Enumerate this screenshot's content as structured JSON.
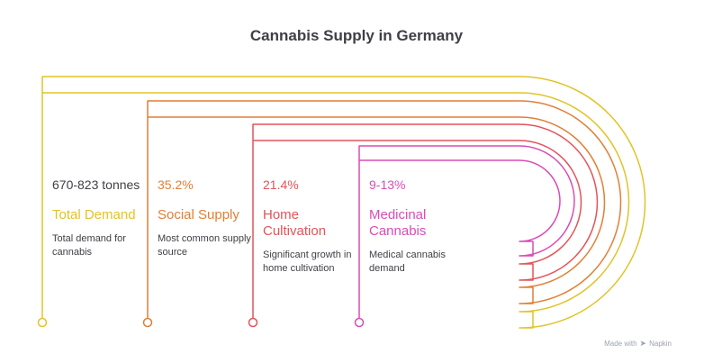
{
  "title": "Cannabis Supply in Germany",
  "colors": {
    "total_demand": "#e1c329",
    "social_supply": "#e07f36",
    "home_cultivation": "#e2545a",
    "medicinal_cannabis": "#d84db7",
    "text_dark": "#3f3f46"
  },
  "items": [
    {
      "stat": "670-823 tonnes",
      "label": "Total Demand",
      "description": "Total demand for cannabis"
    },
    {
      "stat": "35.2%",
      "label": "Social Supply",
      "description": "Most common supply source"
    },
    {
      "stat": "21.4%",
      "label": "Home Cultivation",
      "description": "Significant growth in home cultivation"
    },
    {
      "stat": "9-13%",
      "label": "Medicinal Cannabis",
      "description": "Medical cannabis demand"
    }
  ],
  "footer": {
    "text": "Made with",
    "brand": "Napkin",
    "icon": "napkin-logo-icon"
  }
}
